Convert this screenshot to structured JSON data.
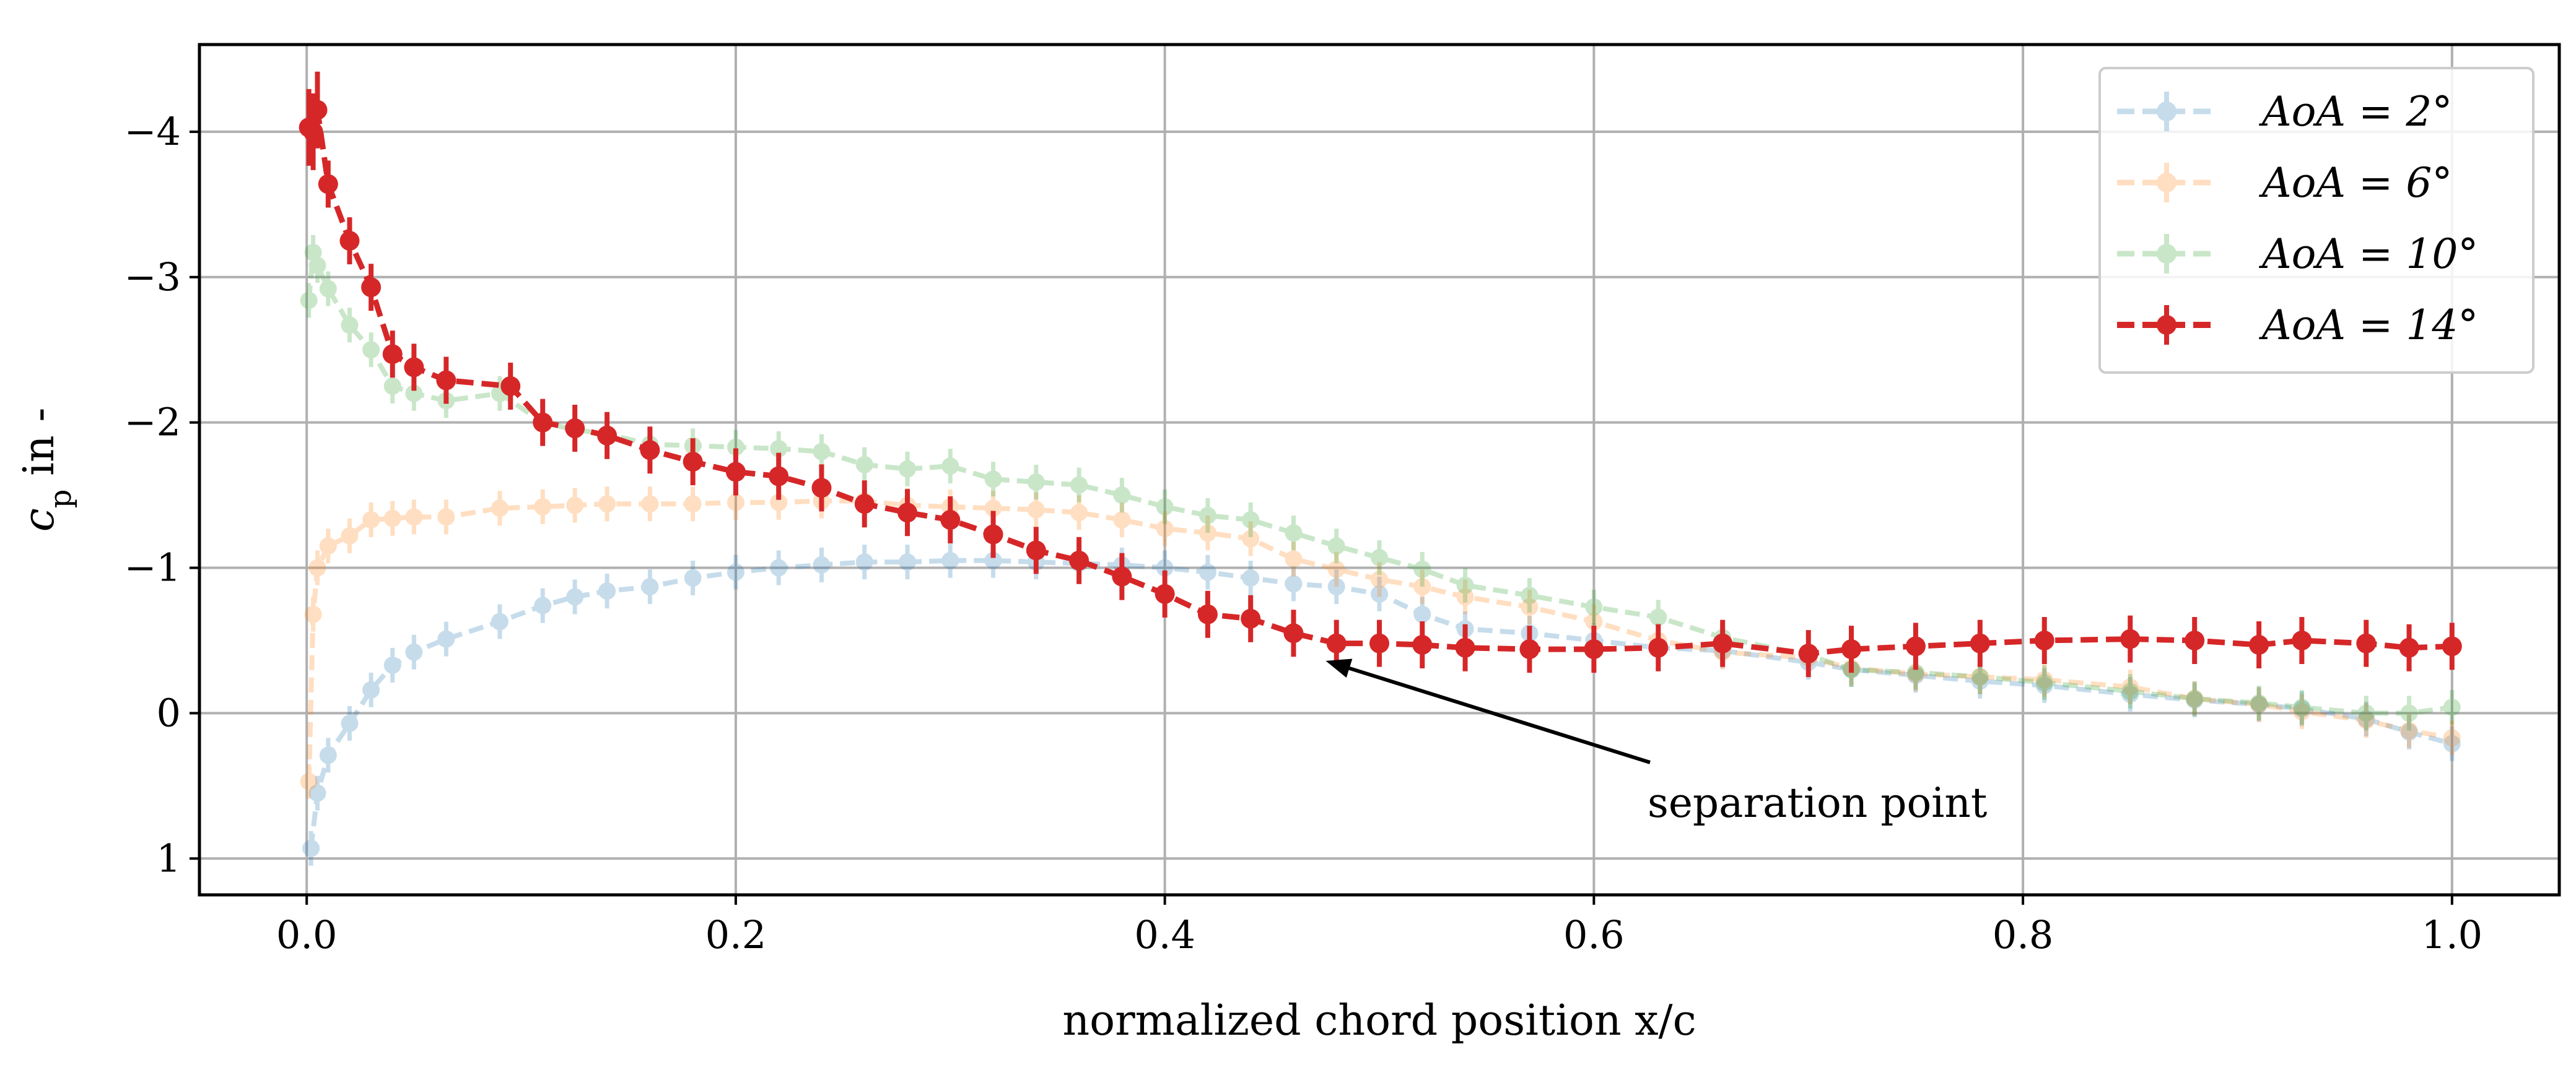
{
  "chart_data": {
    "type": "line",
    "title": "",
    "xlabel": "normalized chord position x/c",
    "ylabel": "c_p in -",
    "ylabel_main": "c",
    "ylabel_sub": "p",
    "ylabel_rest": " in -",
    "xlim": [
      -0.05,
      1.05
    ],
    "ylim": [
      1.25,
      -4.6
    ],
    "y_inverted": true,
    "grid": true,
    "legend_position": "top-right",
    "x_ticks": [
      0.0,
      0.2,
      0.4,
      0.6,
      0.8,
      1.0
    ],
    "x_tick_labels": [
      "0.0",
      "0.2",
      "0.4",
      "0.6",
      "0.8",
      "1.0"
    ],
    "y_ticks": [
      -4,
      -3,
      -2,
      -1,
      0,
      1
    ],
    "y_tick_labels": [
      "−4",
      "−3",
      "−2",
      "−1",
      "0",
      "1"
    ],
    "annotation": {
      "text": "separation point",
      "point_x": 0.475,
      "point_y": -0.36,
      "text_x": 0.625,
      "text_y": 0.62
    },
    "series": [
      {
        "name": "AoA = 2°",
        "legend_label": "AoA = 2°",
        "color": "#1f77b4",
        "opacity": 0.25,
        "x": [
          0.002,
          0.005,
          0.01,
          0.02,
          0.03,
          0.04,
          0.05,
          0.065,
          0.09,
          0.11,
          0.125,
          0.14,
          0.16,
          0.18,
          0.2,
          0.22,
          0.24,
          0.26,
          0.28,
          0.3,
          0.32,
          0.34,
          0.36,
          0.38,
          0.4,
          0.42,
          0.44,
          0.46,
          0.48,
          0.5,
          0.52,
          0.54,
          0.57,
          0.6,
          0.63,
          0.66,
          0.7,
          0.72,
          0.75,
          0.78,
          0.81,
          0.85,
          0.88,
          0.91,
          0.93,
          0.96,
          0.98,
          1.0
        ],
        "values": [
          0.93,
          0.55,
          0.29,
          0.07,
          -0.16,
          -0.33,
          -0.42,
          -0.51,
          -0.63,
          -0.74,
          -0.8,
          -0.84,
          -0.87,
          -0.93,
          -0.97,
          -1.0,
          -1.02,
          -1.04,
          -1.04,
          -1.05,
          -1.05,
          -1.04,
          -1.03,
          -1.02,
          -1.0,
          -0.97,
          -0.93,
          -0.89,
          -0.87,
          -0.82,
          -0.68,
          -0.58,
          -0.55,
          -0.5,
          -0.45,
          -0.43,
          -0.35,
          -0.3,
          -0.26,
          -0.22,
          -0.19,
          -0.13,
          -0.09,
          -0.06,
          -0.03,
          0.04,
          0.13,
          0.21
        ]
      },
      {
        "name": "AoA = 6°",
        "legend_label": "AoA = 6°",
        "color": "#ff7f0e",
        "opacity": 0.25,
        "x": [
          0.001,
          0.003,
          0.005,
          0.01,
          0.02,
          0.03,
          0.04,
          0.05,
          0.065,
          0.09,
          0.11,
          0.125,
          0.14,
          0.16,
          0.18,
          0.2,
          0.22,
          0.24,
          0.26,
          0.28,
          0.3,
          0.32,
          0.34,
          0.36,
          0.38,
          0.4,
          0.42,
          0.44,
          0.46,
          0.48,
          0.5,
          0.52,
          0.54,
          0.57,
          0.6,
          0.63,
          0.66,
          0.7,
          0.72,
          0.75,
          0.78,
          0.81,
          0.85,
          0.88,
          0.91,
          0.93,
          0.96,
          0.98,
          1.0
        ],
        "values": [
          0.47,
          -0.68,
          -1.0,
          -1.15,
          -1.22,
          -1.33,
          -1.34,
          -1.35,
          -1.35,
          -1.41,
          -1.42,
          -1.43,
          -1.44,
          -1.44,
          -1.44,
          -1.45,
          -1.45,
          -1.46,
          -1.46,
          -1.43,
          -1.42,
          -1.41,
          -1.4,
          -1.38,
          -1.33,
          -1.27,
          -1.24,
          -1.2,
          -1.06,
          -0.99,
          -0.92,
          -0.87,
          -0.8,
          -0.73,
          -0.63,
          -0.5,
          -0.42,
          -0.38,
          -0.31,
          -0.27,
          -0.25,
          -0.23,
          -0.18,
          -0.1,
          -0.06,
          -0.01,
          0.05,
          0.12,
          0.17
        ]
      },
      {
        "name": "AoA = 10°",
        "legend_label": "AoA = 10°",
        "color": "#2ca02c",
        "opacity": 0.25,
        "x": [
          0.001,
          0.003,
          0.005,
          0.01,
          0.02,
          0.03,
          0.04,
          0.05,
          0.065,
          0.09,
          0.11,
          0.125,
          0.14,
          0.16,
          0.18,
          0.2,
          0.22,
          0.24,
          0.26,
          0.28,
          0.3,
          0.32,
          0.34,
          0.36,
          0.38,
          0.4,
          0.42,
          0.44,
          0.46,
          0.48,
          0.5,
          0.52,
          0.54,
          0.57,
          0.6,
          0.63,
          0.66,
          0.7,
          0.72,
          0.75,
          0.78,
          0.81,
          0.85,
          0.88,
          0.91,
          0.93,
          0.96,
          0.98,
          1.0
        ],
        "values": [
          -2.84,
          -3.17,
          -3.08,
          -2.92,
          -2.67,
          -2.5,
          -2.25,
          -2.2,
          -2.15,
          -2.2,
          -2.0,
          -1.95,
          -1.92,
          -1.85,
          -1.84,
          -1.83,
          -1.82,
          -1.8,
          -1.71,
          -1.68,
          -1.7,
          -1.61,
          -1.59,
          -1.57,
          -1.5,
          -1.42,
          -1.36,
          -1.33,
          -1.24,
          -1.15,
          -1.07,
          -0.99,
          -0.88,
          -0.81,
          -0.73,
          -0.66,
          -0.52,
          -0.4,
          -0.3,
          -0.28,
          -0.25,
          -0.21,
          -0.15,
          -0.1,
          -0.07,
          -0.04,
          0.0,
          0.0,
          -0.04
        ]
      },
      {
        "name": "AoA = 14°",
        "legend_label": "AoA = 14°",
        "color": "#d62728",
        "opacity": 1.0,
        "x": [
          0.001,
          0.003,
          0.005,
          0.01,
          0.02,
          0.03,
          0.04,
          0.05,
          0.065,
          0.095,
          0.11,
          0.125,
          0.14,
          0.16,
          0.18,
          0.2,
          0.22,
          0.24,
          0.26,
          0.28,
          0.3,
          0.32,
          0.34,
          0.36,
          0.38,
          0.4,
          0.42,
          0.44,
          0.46,
          0.48,
          0.5,
          0.52,
          0.54,
          0.57,
          0.6,
          0.63,
          0.66,
          0.7,
          0.72,
          0.75,
          0.78,
          0.81,
          0.85,
          0.88,
          0.91,
          0.93,
          0.96,
          0.98,
          1.0
        ],
        "values": [
          -4.03,
          -4.0,
          -4.15,
          -3.64,
          -3.25,
          -2.93,
          -2.47,
          -2.38,
          -2.29,
          -2.25,
          -2.0,
          -1.96,
          -1.91,
          -1.81,
          -1.73,
          -1.66,
          -1.63,
          -1.55,
          -1.44,
          -1.38,
          -1.33,
          -1.23,
          -1.12,
          -1.05,
          -0.94,
          -0.82,
          -0.68,
          -0.65,
          -0.55,
          -0.48,
          -0.48,
          -0.47,
          -0.45,
          -0.44,
          -0.44,
          -0.45,
          -0.48,
          -0.41,
          -0.44,
          -0.46,
          -0.48,
          -0.5,
          -0.51,
          -0.5,
          -0.47,
          -0.5,
          -0.48,
          -0.45,
          -0.46
        ]
      }
    ]
  }
}
